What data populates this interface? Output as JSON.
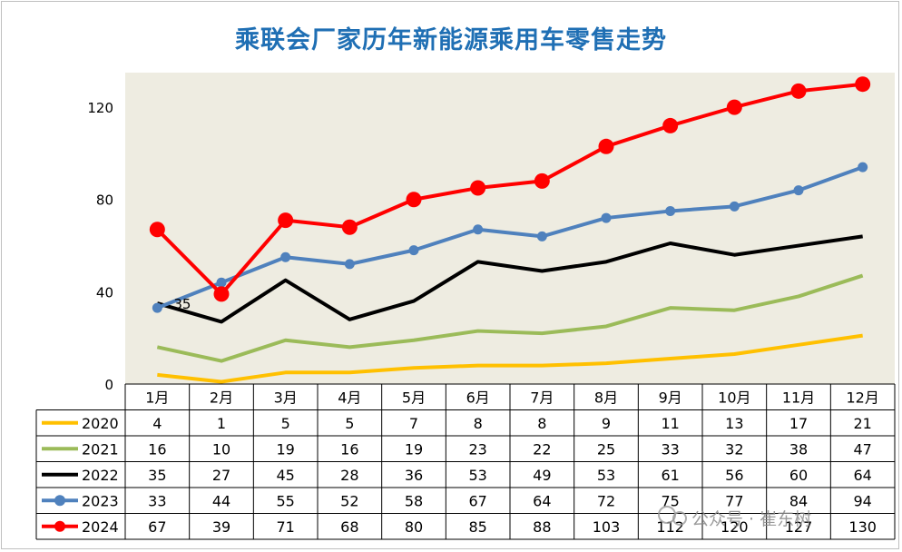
{
  "title": "乘联会厂家历年新能源乘用车零售走势",
  "watermark": "公众号 · 崔东树",
  "chart_data": {
    "type": "line",
    "categories": [
      "1月",
      "2月",
      "3月",
      "4月",
      "5月",
      "6月",
      "7月",
      "8月",
      "9月",
      "10月",
      "11月",
      "12月"
    ],
    "y_ticks": [
      0,
      40,
      80,
      120
    ],
    "ylim": [
      0,
      135
    ],
    "grid": false,
    "plot_background": "#eeece1",
    "legend": "table-below",
    "annotations": [
      {
        "series": "2022",
        "category": "1月",
        "text": "35"
      }
    ],
    "series": [
      {
        "name": "2020",
        "color": "#ffc000",
        "marker": false,
        "values": [
          4,
          1,
          5,
          5,
          7,
          8,
          8,
          9,
          11,
          13,
          17,
          21
        ]
      },
      {
        "name": "2021",
        "color": "#9bbb59",
        "marker": false,
        "values": [
          16,
          10,
          19,
          16,
          19,
          23,
          22,
          25,
          33,
          32,
          38,
          47
        ]
      },
      {
        "name": "2022",
        "color": "#000000",
        "marker": false,
        "values": [
          35,
          27,
          45,
          28,
          36,
          53,
          49,
          53,
          61,
          56,
          60,
          64
        ]
      },
      {
        "name": "2023",
        "color": "#4f81bd",
        "marker": true,
        "values": [
          33,
          44,
          55,
          52,
          58,
          67,
          64,
          72,
          75,
          77,
          84,
          94
        ]
      },
      {
        "name": "2024",
        "color": "#ff0000",
        "marker": true,
        "values": [
          67,
          39,
          71,
          68,
          80,
          85,
          88,
          103,
          112,
          120,
          127,
          130
        ]
      }
    ]
  }
}
